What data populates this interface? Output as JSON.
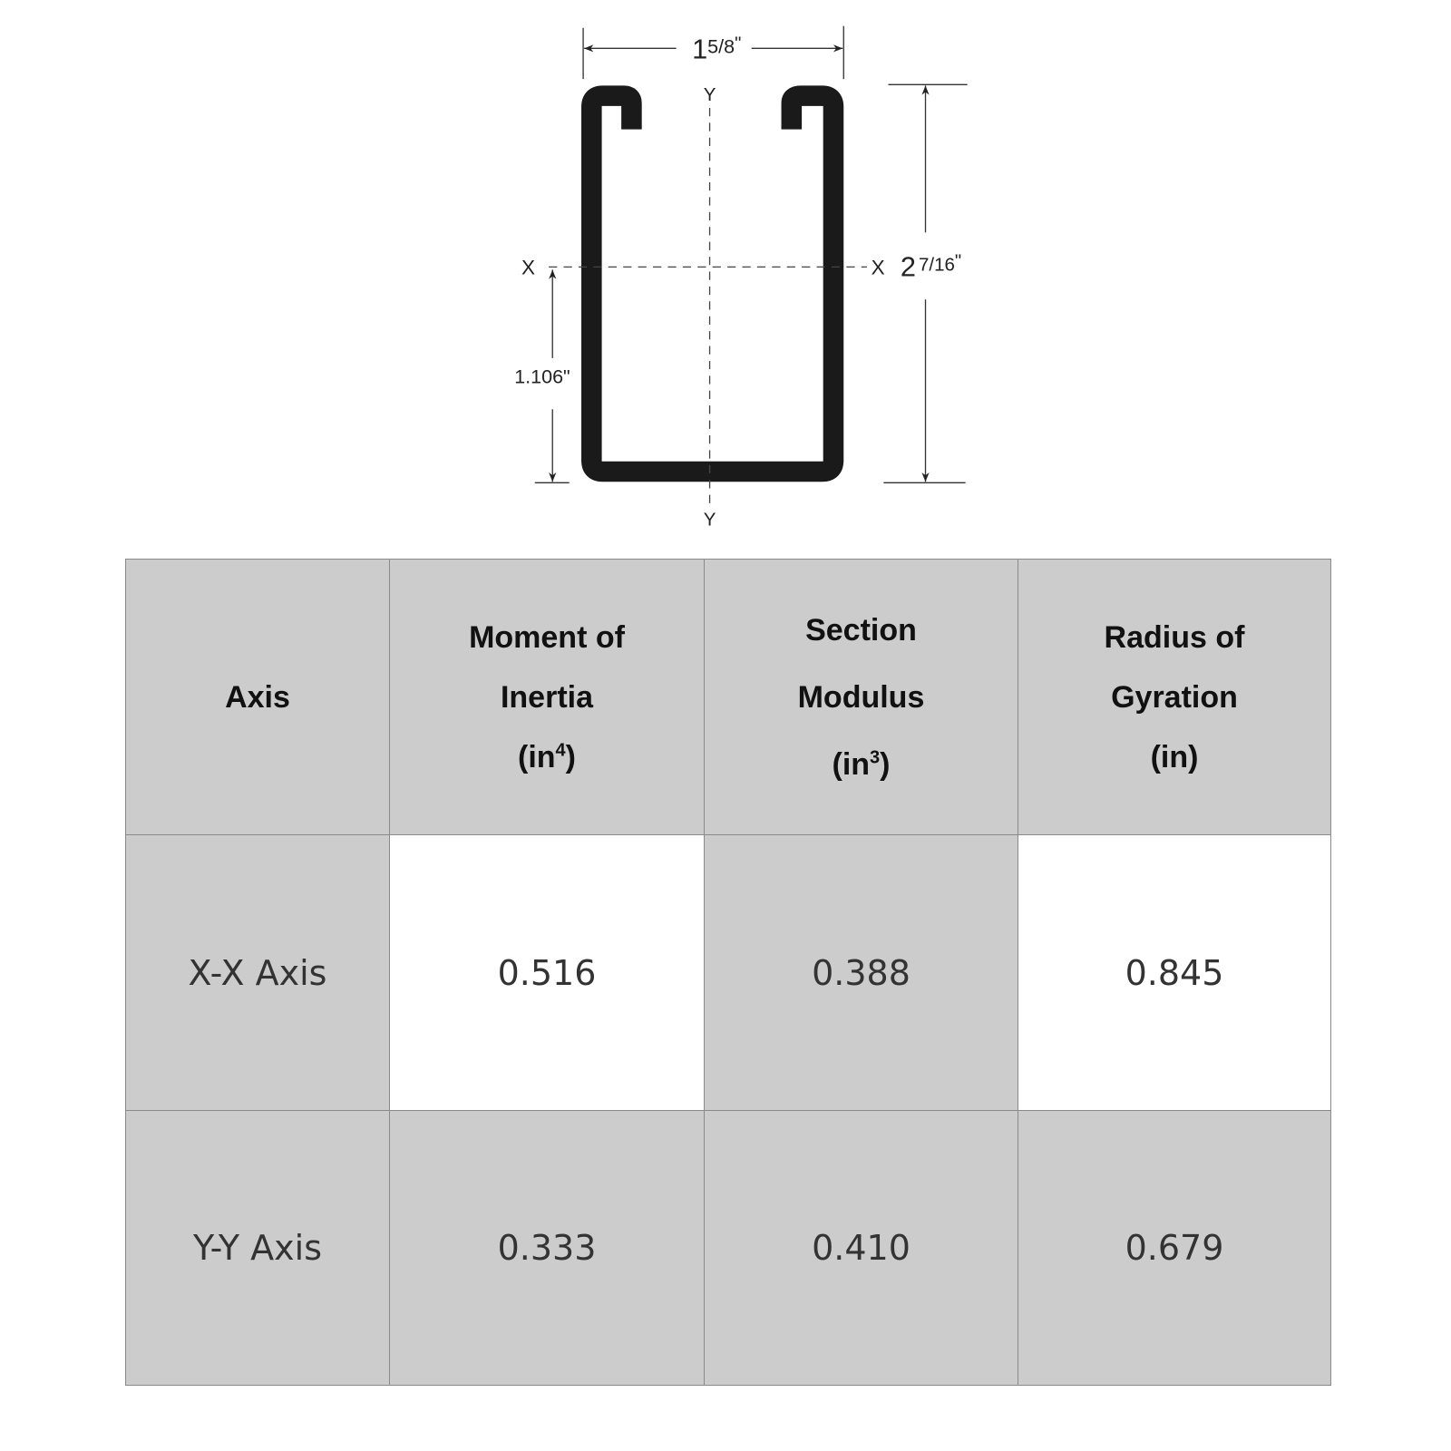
{
  "diagram": {
    "width_dim": {
      "whole": "1",
      "fraction": "5/8",
      "unit": "\""
    },
    "height_dim": {
      "whole": "2",
      "fraction": "7/16",
      "unit": "\""
    },
    "centroid_dim": "1.106\"",
    "axis_labels": {
      "x_left": "X",
      "x_right": "X",
      "y_top": "Y",
      "y_bottom": "Y"
    },
    "colors": {
      "profile": "#1a1a1a",
      "lines": "#333333"
    }
  },
  "table": {
    "headers": [
      {
        "lines": [
          "Axis"
        ]
      },
      {
        "lines": [
          "Moment of",
          "Inertia"
        ],
        "unit": "(in",
        "sup": "4",
        "unit_end": ")"
      },
      {
        "lines": [
          "Section",
          "Modulus"
        ],
        "unit": "(in",
        "sup": "3",
        "unit_end": ")"
      },
      {
        "lines": [
          "Radius of",
          "Gyration"
        ],
        "unit": "(in)"
      }
    ],
    "rows": [
      {
        "axis": "X-X Axis",
        "moment_of_inertia": "0.516",
        "section_modulus": "0.388",
        "radius_of_gyration": "0.845"
      },
      {
        "axis": "Y-Y Axis",
        "moment_of_inertia": "0.333",
        "section_modulus": "0.410",
        "radius_of_gyration": "0.679"
      }
    ],
    "colors": {
      "header_bg": "#cccccc",
      "white_cell": "#ffffff",
      "border": "#8a8a8a"
    }
  }
}
